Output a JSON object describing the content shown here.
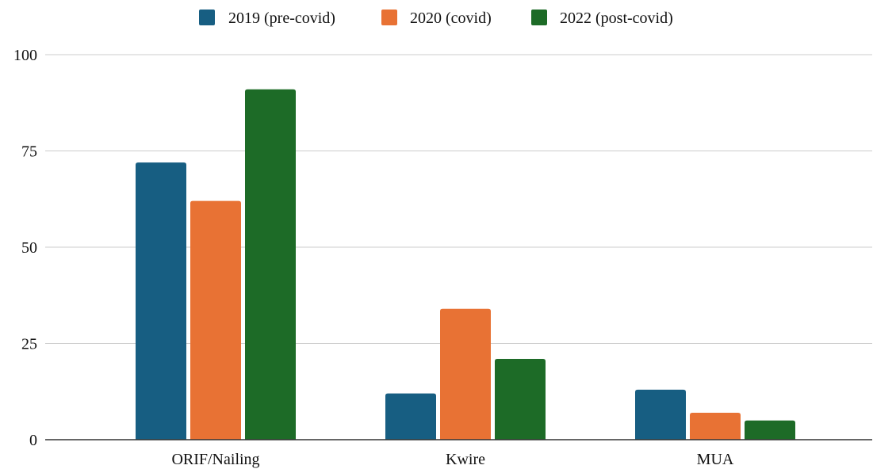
{
  "chart_data": {
    "type": "bar",
    "title": "",
    "xlabel": "",
    "ylabel": "",
    "categories": [
      "ORIF/Nailing",
      "Kwire",
      "MUA"
    ],
    "series": [
      {
        "name": "2019 (pre-covid)",
        "color": "#175e82",
        "values": [
          72,
          12,
          13
        ]
      },
      {
        "name": "2020 (covid)",
        "color": "#e87234",
        "values": [
          62,
          34,
          7
        ]
      },
      {
        "name": "2022 (post-covid)",
        "color": "#1d6b27",
        "values": [
          91,
          21,
          5
        ]
      }
    ],
    "ylim": [
      0,
      100
    ],
    "yticks": [
      0,
      25,
      50,
      75,
      100
    ],
    "ytick_labels": [
      "0",
      "25",
      "50",
      "75",
      "100"
    ],
    "grid": true,
    "gridline_color": "#cccccc",
    "axis_color": "#333333",
    "legend_position": "top-center"
  }
}
